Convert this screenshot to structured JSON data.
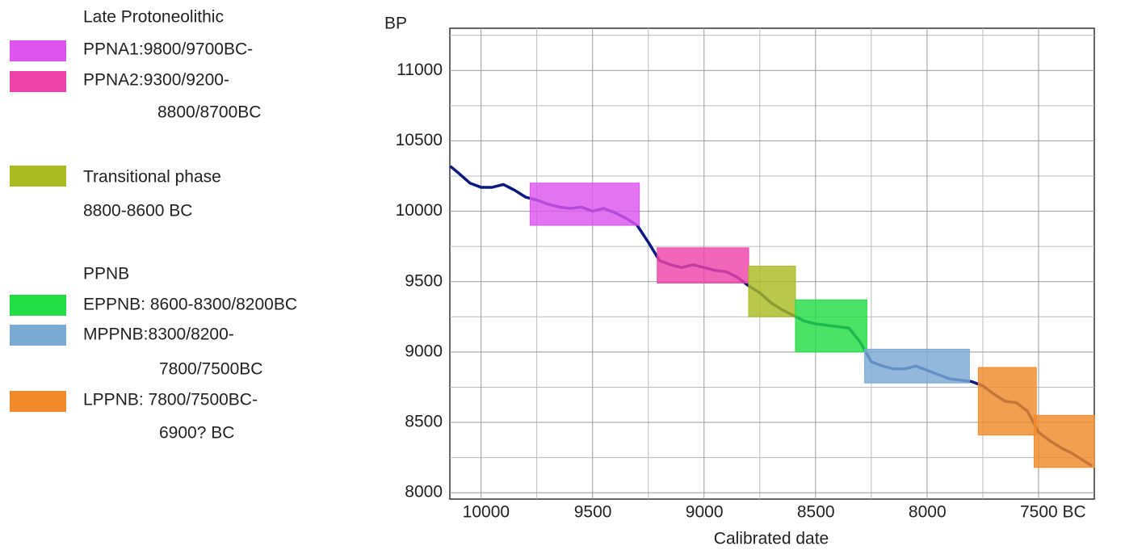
{
  "chart_data": {
    "type": "line",
    "y_label": "BP",
    "x_label": "Calibrated date",
    "xlim": [
      10140,
      7250
    ],
    "ylim": [
      7955,
      11300
    ],
    "xticks": [
      10000,
      9500,
      9000,
      8500,
      8000,
      {
        "value": 7500,
        "label": "7500 BC"
      }
    ],
    "x_minor_ticks": [
      9750,
      9250,
      8750,
      8250,
      7750
    ],
    "yticks": [
      8000,
      8500,
      9000,
      9500,
      10000,
      10500,
      11000
    ],
    "y_minor_ticks": [
      8250,
      8750,
      9250,
      9750,
      10250,
      10750,
      11250
    ],
    "grid": true,
    "curve": {
      "color": "#0a1a80",
      "x": [
        10138,
        10100,
        10050,
        10000,
        9950,
        9900,
        9850,
        9800,
        9750,
        9700,
        9650,
        9600,
        9550,
        9500,
        9450,
        9400,
        9350,
        9300,
        9250,
        9200,
        9150,
        9100,
        9050,
        9000,
        8950,
        8900,
        8850,
        8800,
        8750,
        8700,
        8650,
        8600,
        8550,
        8500,
        8450,
        8400,
        8350,
        8300,
        8250,
        8200,
        8150,
        8100,
        8050,
        8000,
        7950,
        7900,
        7850,
        7800,
        7750,
        7700,
        7650,
        7600,
        7550,
        7500,
        7450,
        7400,
        7350,
        7300,
        7260
      ],
      "values": [
        10320,
        10270,
        10200,
        10170,
        10170,
        10190,
        10150,
        10100,
        10080,
        10050,
        10030,
        10020,
        10030,
        10000,
        10020,
        9990,
        9950,
        9900,
        9780,
        9650,
        9620,
        9600,
        9620,
        9600,
        9580,
        9570,
        9530,
        9470,
        9420,
        9350,
        9300,
        9260,
        9220,
        9200,
        9190,
        9180,
        9170,
        9070,
        8930,
        8900,
        8880,
        8880,
        8900,
        8870,
        8840,
        8810,
        8800,
        8790,
        8760,
        8700,
        8650,
        8640,
        8580,
        8430,
        8370,
        8320,
        8280,
        8230,
        8190
      ]
    },
    "groups": [
      {
        "title": "Late Protoneolithic",
        "items": [
          {
            "label": [
              "PPNA1:9800/9700BC-"
            ],
            "color": "#dd55ee",
            "boxes": [
              {
                "x": [
                  9780,
                  9290
                ],
                "y": [
                  9900,
                  10200
                ]
              }
            ]
          },
          {
            "label": [
              "PPNA2:9300/9200-",
              "8800/8700BC"
            ],
            "color": "#ee44aa",
            "boxes": [
              {
                "x": [
                  9210,
                  8800
                ],
                "y": [
                  9490,
                  9740
                ]
              }
            ]
          }
        ]
      },
      {
        "items": [
          {
            "label": [
              "Transitional phase",
              "8800-8600 BC"
            ],
            "color": "#aabb22",
            "boxes": [
              {
                "x": [
                  8800,
                  8590
                ],
                "y": [
                  9250,
                  9610
                ]
              }
            ]
          }
        ]
      },
      {
        "title": "PPNB",
        "items": [
          {
            "label": [
              "EPPNB: 8600-8300/8200BC"
            ],
            "color": "#22dd44",
            "boxes": [
              {
                "x": [
                  8590,
                  8270
                ],
                "y": [
                  9000,
                  9370
                ]
              }
            ]
          },
          {
            "label": [
              "MPPNB:8300/8200-",
              "7800/7500BC"
            ],
            "color": "#7aaad4",
            "boxes": [
              {
                "x": [
                  8280,
                  7810
                ],
                "y": [
                  8780,
                  9020
                ]
              }
            ]
          },
          {
            "label": [
              "LPPNB: 7800/7500BC-",
              "6900? BC"
            ],
            "color": "#f08a2a",
            "boxes": [
              {
                "x": [
                  7770,
                  7510
                ],
                "y": [
                  8410,
                  8890
                ]
              },
              {
                "x": [
                  7520,
                  7250
                ],
                "y": [
                  8180,
                  8550
                ]
              }
            ]
          }
        ]
      }
    ]
  }
}
